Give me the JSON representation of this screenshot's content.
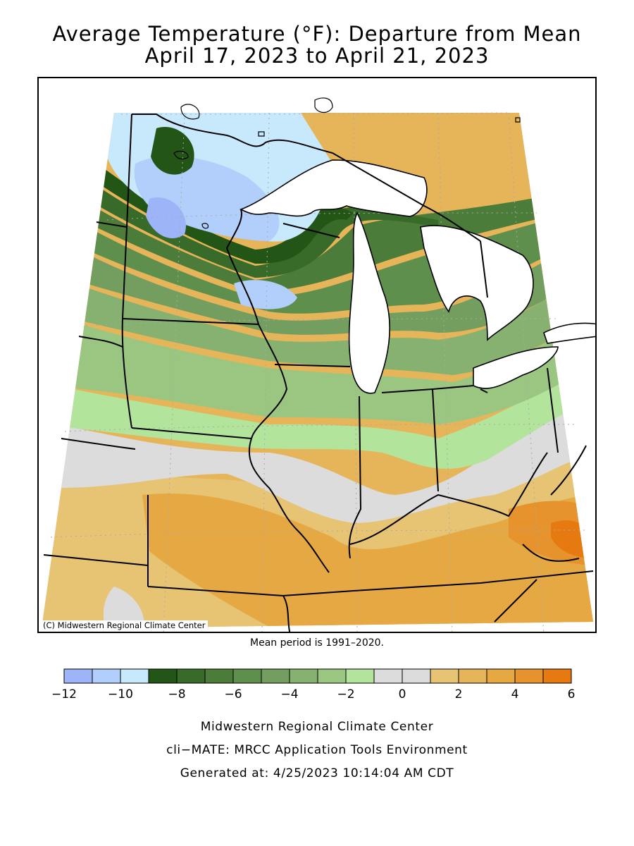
{
  "title_line1": "Average Temperature (°F): Departure from Mean",
  "title_line2": "April 17, 2023 to April 21, 2023",
  "credit": "(C) Midwestern Regional Climate Center",
  "mean_period": "Mean period is 1991–2020.",
  "legend": {
    "colors": [
      "#9db4f9",
      "#b1cffa",
      "#c8e8fc",
      "#225516",
      "#386a2a",
      "#4c7c3a",
      "#5f8f4d",
      "#739e5f",
      "#87b170",
      "#9bc682",
      "#b2e49c",
      "#dcdcdc",
      "#dcdcdc",
      "#e6c473",
      "#e6b459",
      "#e6a842",
      "#e6932d",
      "#e6790f"
    ],
    "ticks": [
      "−12",
      "−10",
      "−8",
      "−6",
      "−4",
      "−2",
      "0",
      "2",
      "4",
      "6"
    ]
  },
  "footer": {
    "line1": "Midwestern Regional Climate Center",
    "line2": "cli−MATE: MRCC Application Tools Environment",
    "line3": "Generated at: 4/25/2023 10:14:04 AM CDT"
  }
}
